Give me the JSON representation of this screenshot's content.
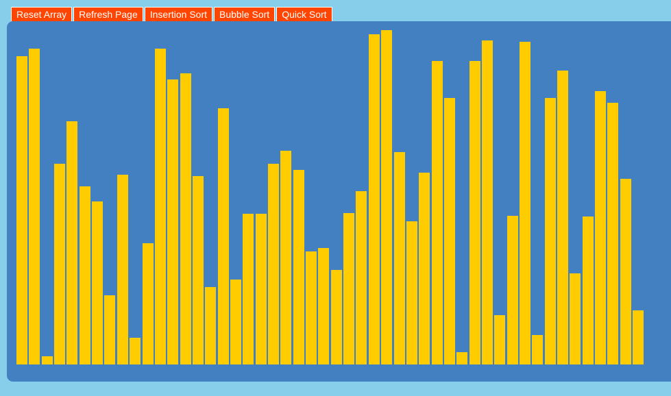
{
  "toolbar": {
    "buttons": [
      {
        "label": "Reset Array",
        "name": "reset-array-button"
      },
      {
        "label": "Refresh Page",
        "name": "refresh-page-button"
      },
      {
        "label": "Insertion Sort",
        "name": "insertion-sort-button"
      },
      {
        "label": "Bubble Sort",
        "name": "bubble-sort-button"
      },
      {
        "label": "Quick Sort",
        "name": "quick-sort-button"
      }
    ]
  },
  "colors": {
    "page_background": "#87ceeb",
    "panel_background": "#4380c1",
    "bar_color": "#ffcc00",
    "button_background": "#ff4500",
    "button_text": "#ffffff"
  },
  "array_values": [
    450,
    461,
    12,
    293,
    355,
    260,
    238,
    101,
    277,
    39,
    177,
    461,
    416,
    425,
    275,
    113,
    374,
    124,
    220,
    220,
    293,
    312,
    284,
    165,
    170,
    138,
    221,
    253,
    482,
    488,
    310,
    209,
    280,
    443,
    389,
    18,
    443,
    473,
    72,
    217,
    471,
    43,
    389,
    429,
    133,
    216,
    399,
    382,
    271,
    79
  ]
}
